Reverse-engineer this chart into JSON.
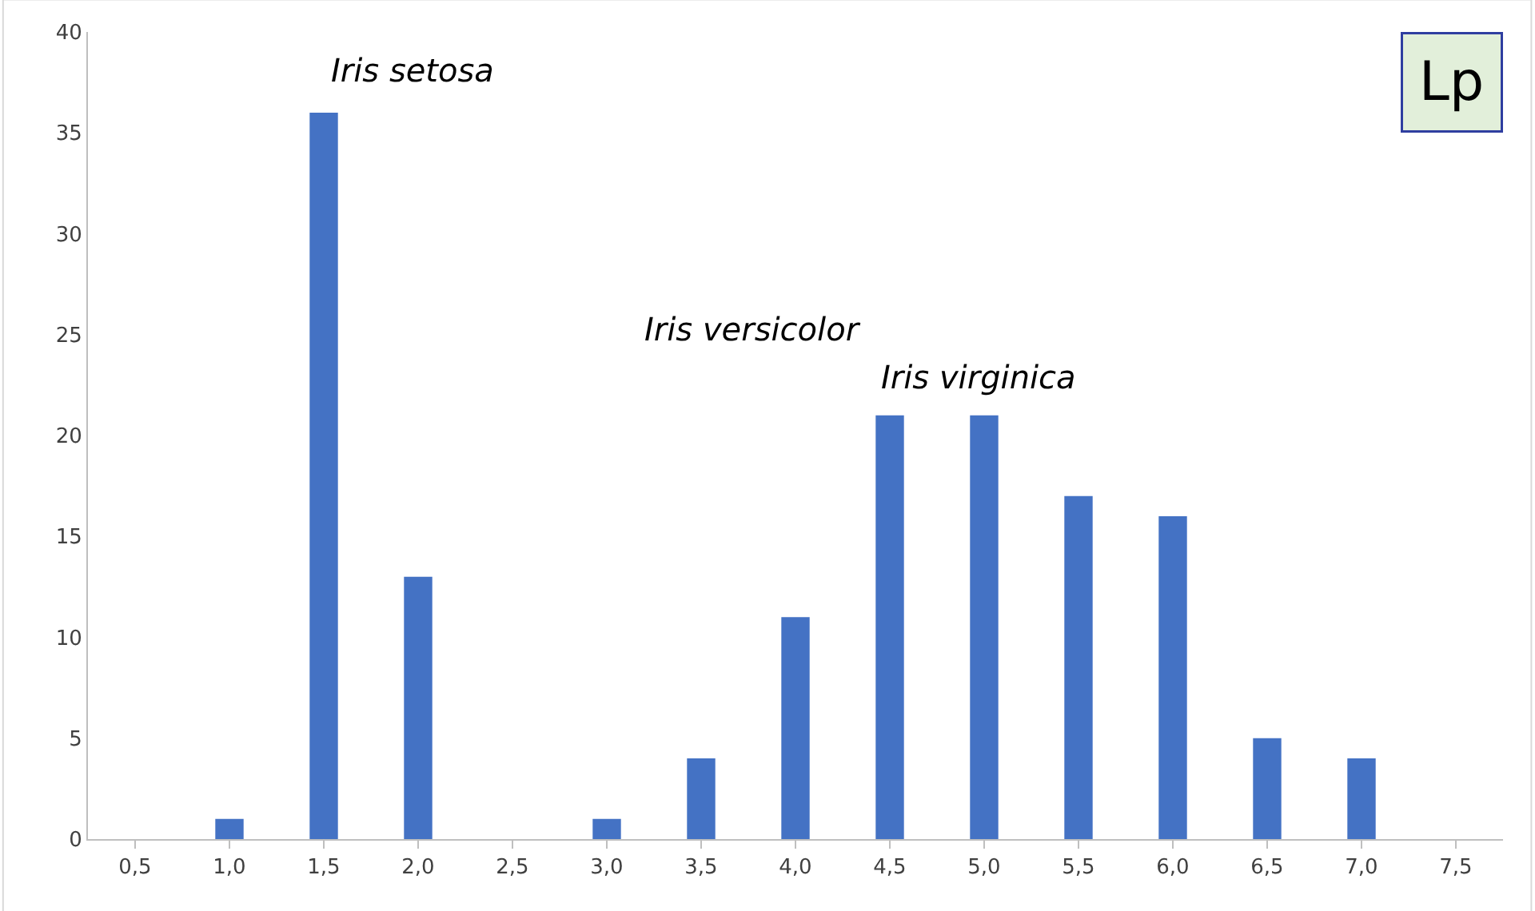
{
  "chart_data": {
    "type": "bar",
    "categories": [
      "0,5",
      "1,0",
      "1,5",
      "2,0",
      "2,5",
      "3,0",
      "3,5",
      "4,0",
      "4,5",
      "5,0",
      "5,5",
      "6,0",
      "6,5",
      "7,0",
      "7,5"
    ],
    "values": [
      0,
      1,
      36,
      13,
      0,
      1,
      4,
      11,
      21,
      21,
      17,
      16,
      5,
      4,
      0
    ],
    "color": "#4472c4",
    "ylim": [
      0,
      40
    ],
    "yticks": [
      0,
      5,
      10,
      15,
      20,
      25,
      30,
      35,
      40
    ],
    "legend": false,
    "annotations": [
      "Iris setosa",
      "Iris versicolor",
      "Iris virginica",
      "Lp"
    ]
  }
}
